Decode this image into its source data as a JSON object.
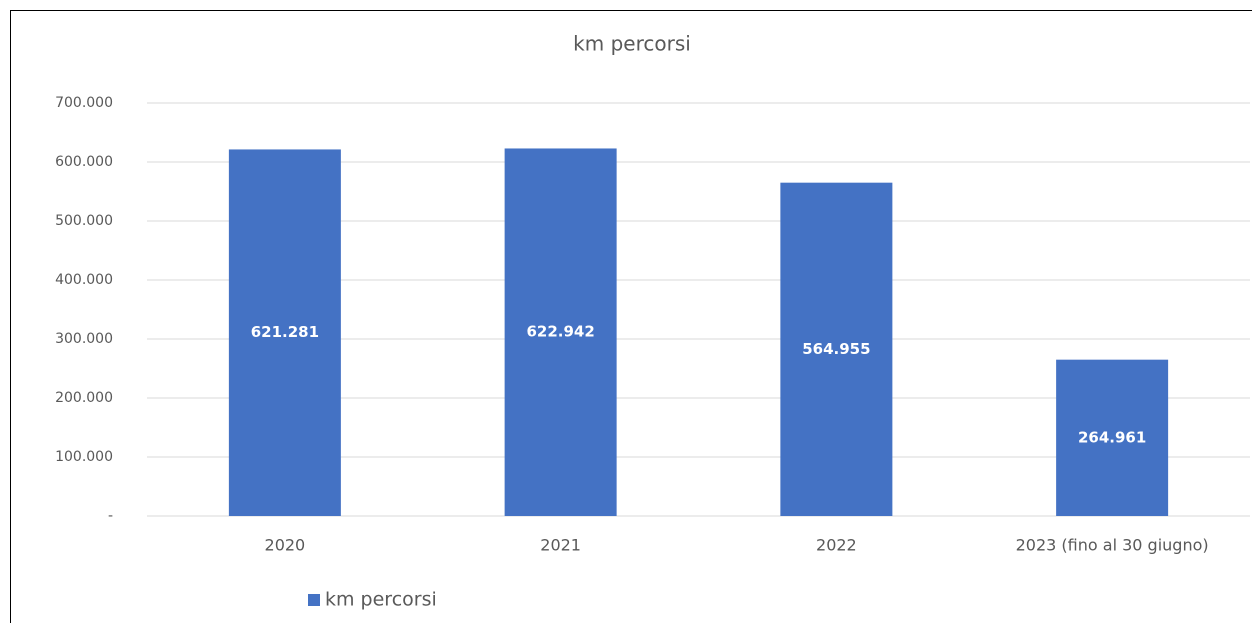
{
  "chart_data": {
    "type": "bar",
    "title": "km percorsi",
    "categories": [
      "2020",
      "2021",
      "2022",
      "2023 (fino al 30 giugno)"
    ],
    "series": [
      {
        "name": "km percorsi",
        "color": "#4472c4",
        "values": [
          621281,
          622942,
          564955,
          264961
        ],
        "value_labels": [
          "621.281",
          "622.942",
          "564.955",
          "264.961"
        ]
      }
    ],
    "ylim": [
      0,
      700000
    ],
    "yticks": [
      {
        "value": 0,
        "label": "-"
      },
      {
        "value": 100000,
        "label": "100.000"
      },
      {
        "value": 200000,
        "label": "200.000"
      },
      {
        "value": 300000,
        "label": "300.000"
      },
      {
        "value": 400000,
        "label": "400.000"
      },
      {
        "value": 500000,
        "label": "500.000"
      },
      {
        "value": 600000,
        "label": "600.000"
      },
      {
        "value": 700000,
        "label": "700.000"
      }
    ],
    "grid": true,
    "legend": "bottom-left"
  }
}
